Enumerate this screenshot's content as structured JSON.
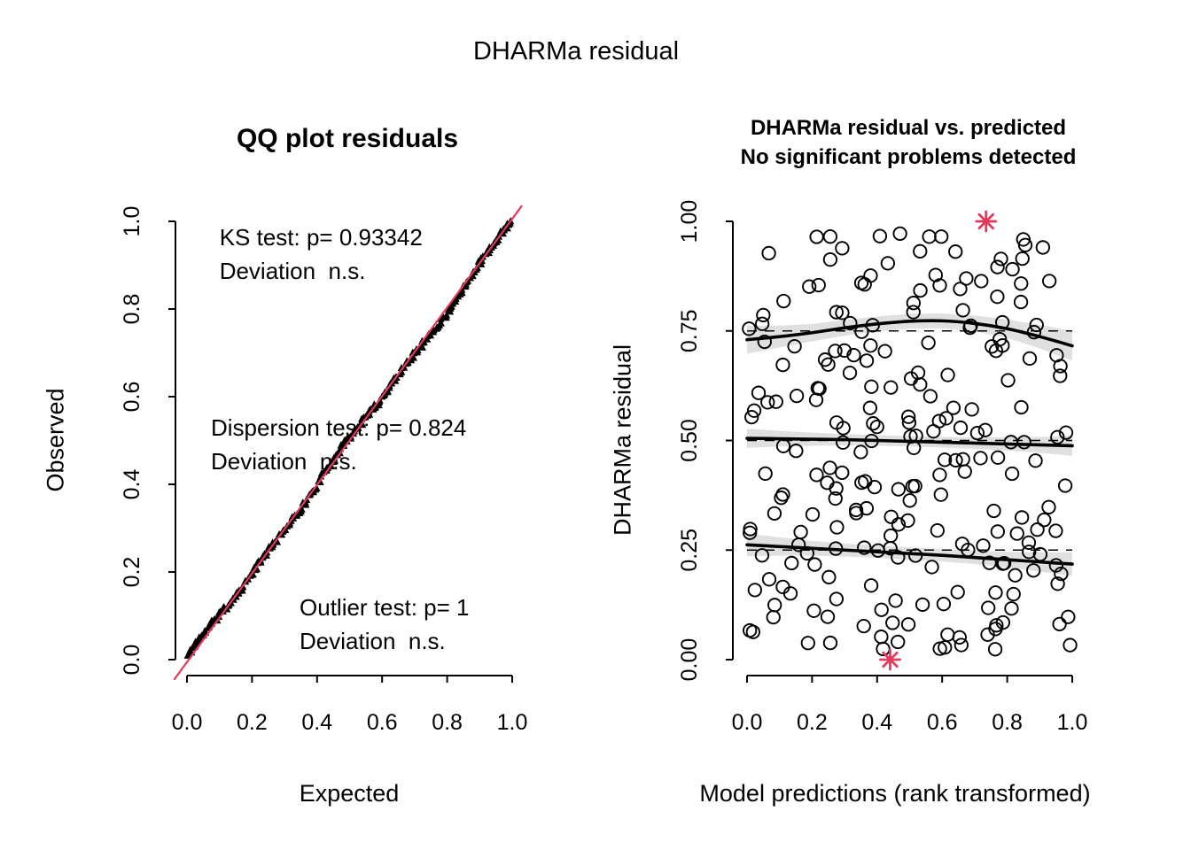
{
  "page": {
    "background": "#ffffff",
    "main_title": "DHARMa residual"
  },
  "colors": {
    "ink": "#000000",
    "accent_red": "#e5395c",
    "band_gray": "rgba(0,0,0,0.12)"
  },
  "chart_data": [
    {
      "id": "qq",
      "type": "scatter",
      "title": "QQ plot residuals",
      "xlabel": "Expected",
      "ylabel": "Observed",
      "xlim": [
        0,
        1
      ],
      "ylim": [
        0,
        1
      ],
      "grid": false,
      "legend": false,
      "x_tick_labels": [
        "0.0",
        "0.2",
        "0.4",
        "0.6",
        "0.8",
        "1.0"
      ],
      "x_tick_values": [
        0,
        0.2,
        0.4,
        0.6,
        0.8,
        1.0
      ],
      "y_tick_labels": [
        "0.0",
        "0.2",
        "0.4",
        "0.6",
        "0.8",
        "1.0"
      ],
      "y_tick_values": [
        0,
        0.2,
        0.4,
        0.6,
        0.8,
        1.0
      ],
      "ref_line": {
        "from": [
          -0.04,
          -0.046
        ],
        "to": [
          1.03,
          1.036
        ],
        "color": "#e5395c"
      },
      "qq_points": {
        "n": 260,
        "seed": 11,
        "jitter": 0.012,
        "marker": "triangle",
        "description": "observed uniform residual quantiles hugging the 1:1 line"
      },
      "annotations": [
        {
          "x": 0.1,
          "lines": [
            {
              "text": "KS test: p= 0.93342",
              "y": 0.9455
            },
            {
              "text": "Deviation  n.s.",
              "y": 0.8687
            }
          ]
        },
        {
          "x": 0.0736,
          "lines": [
            {
              "text": "Dispersion test: p= 0.824",
              "y": 0.5111
            },
            {
              "text": "Deviation  n.s.",
              "y": 0.4343
            }
          ]
        },
        {
          "x": 0.3461,
          "lines": [
            {
              "text": "Outlier test: p= 1",
              "y": 0.101
            },
            {
              "text": "Deviation  n.s.",
              "y": 0.0242
            }
          ]
        }
      ]
    },
    {
      "id": "res",
      "type": "scatter",
      "title_line1": "DHARMa residual vs. predicted",
      "title_line2": "No significant problems detected",
      "xlabel": "Model predictions (rank transformed)",
      "ylabel": "DHARMa residual",
      "xlim": [
        0,
        1
      ],
      "ylim": [
        0,
        1
      ],
      "grid": false,
      "legend": false,
      "x_tick_labels": [
        "0.0",
        "0.2",
        "0.4",
        "0.6",
        "0.8",
        "1.0"
      ],
      "x_tick_values": [
        0,
        0.2,
        0.4,
        0.6,
        0.8,
        1.0
      ],
      "y_tick_labels": [
        "0.00",
        "0.25",
        "0.50",
        "0.75",
        "1.00"
      ],
      "y_tick_values": [
        0,
        0.25,
        0.5,
        0.75,
        1.0
      ],
      "dashed_refs": [
        0.25,
        0.5,
        0.75
      ],
      "scatter": {
        "n": 235,
        "seed": 5,
        "marker": "open-circle",
        "description": "uniform scatter of simulated residuals"
      },
      "quantile_curves": [
        {
          "q": 0.25,
          "x": [
            0,
            0.1,
            0.2,
            0.3,
            0.4,
            0.5,
            0.6,
            0.7,
            0.8,
            0.9,
            1.0
          ],
          "y": [
            0.262,
            0.258,
            0.254,
            0.25,
            0.246,
            0.242,
            0.238,
            0.233,
            0.228,
            0.223,
            0.218
          ],
          "band": [
            0.026,
            0.021,
            0.017,
            0.015,
            0.014,
            0.014,
            0.014,
            0.015,
            0.018,
            0.022,
            0.027
          ]
        },
        {
          "q": 0.5,
          "x": [
            0,
            0.1,
            0.2,
            0.3,
            0.4,
            0.5,
            0.6,
            0.7,
            0.8,
            0.9,
            1.0
          ],
          "y": [
            0.505,
            0.504,
            0.503,
            0.502,
            0.5,
            0.498,
            0.496,
            0.494,
            0.492,
            0.49,
            0.488
          ],
          "band": [
            0.022,
            0.018,
            0.015,
            0.013,
            0.012,
            0.012,
            0.012,
            0.013,
            0.015,
            0.018,
            0.023
          ]
        },
        {
          "q": 0.75,
          "x": [
            0,
            0.1,
            0.2,
            0.3,
            0.4,
            0.5,
            0.6,
            0.7,
            0.8,
            0.9,
            1.0
          ],
          "y": [
            0.73,
            0.737,
            0.746,
            0.757,
            0.766,
            0.772,
            0.773,
            0.767,
            0.755,
            0.737,
            0.716
          ],
          "band": [
            0.032,
            0.025,
            0.02,
            0.018,
            0.017,
            0.017,
            0.017,
            0.018,
            0.021,
            0.027,
            0.034
          ]
        }
      ],
      "outliers": [
        {
          "x": 0.735,
          "y": 1.0
        },
        {
          "x": 0.44,
          "y": 0.0
        }
      ]
    }
  ]
}
